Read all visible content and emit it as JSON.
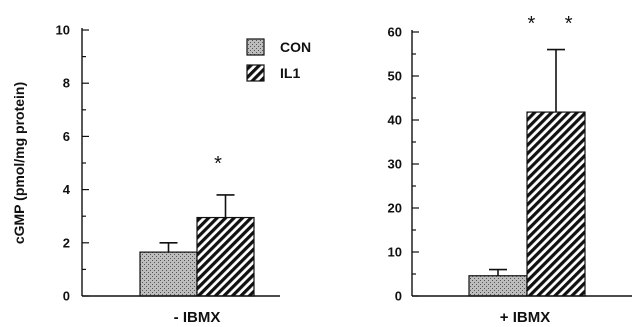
{
  "chart_data": [
    {
      "type": "bar",
      "xlabel": "- IBMX",
      "ylabel": "cGMP  (pmol/mg  protein)",
      "ylim": [
        0,
        10
      ],
      "yticks": [
        0,
        2,
        4,
        6,
        8,
        10
      ],
      "series": [
        {
          "name": "CON",
          "values": [
            1.65
          ],
          "error": [
            0.35
          ],
          "pattern": "stipple"
        },
        {
          "name": "IL1",
          "values": [
            2.95
          ],
          "error": [
            0.85
          ],
          "pattern": "hatch"
        }
      ],
      "significance": [
        "",
        "*"
      ],
      "legend": {
        "position": "top-right",
        "entries": [
          "CON",
          "IL1"
        ]
      },
      "grid": false
    },
    {
      "type": "bar",
      "xlabel": "+ IBMX",
      "ylabel": "",
      "ylim": [
        0,
        60
      ],
      "yticks": [
        0,
        10,
        20,
        30,
        40,
        50,
        60
      ],
      "series": [
        {
          "name": "CON",
          "values": [
            4.6
          ],
          "error": [
            1.4
          ],
          "pattern": "stipple"
        },
        {
          "name": "IL1",
          "values": [
            41.8
          ],
          "error": [
            14.2
          ],
          "pattern": "hatch"
        }
      ],
      "significance": [
        "",
        "* *"
      ],
      "grid": false
    }
  ],
  "colors": {
    "ink": "#111111",
    "stipple_fill": "#bdbdbd"
  }
}
